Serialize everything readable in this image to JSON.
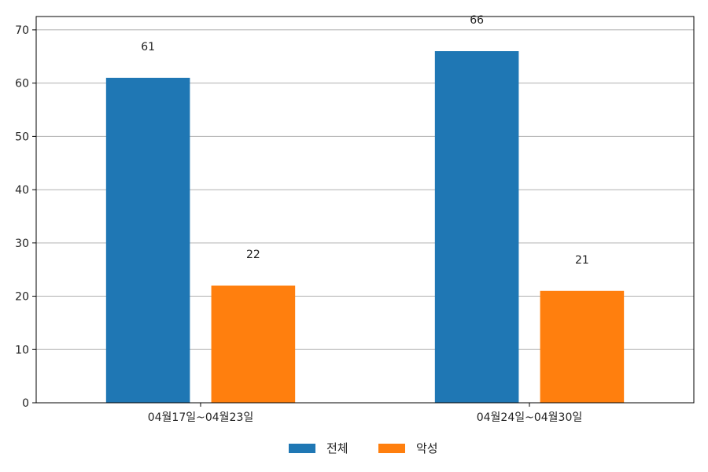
{
  "chart_data": {
    "type": "bar",
    "categories": [
      "04월17일~04월23일",
      "04월24일~04월30일"
    ],
    "series": [
      {
        "name": "전체",
        "values": [
          61,
          66
        ],
        "color": "#1f77b4"
      },
      {
        "name": "악성",
        "values": [
          22,
          21
        ],
        "color": "#ff7f0e"
      }
    ],
    "ylim": [
      0,
      72.5
    ],
    "yticks": [
      0,
      10,
      20,
      30,
      40,
      50,
      60,
      70
    ],
    "grid": true,
    "legend_position": "bottom-center",
    "data_labels": true
  }
}
